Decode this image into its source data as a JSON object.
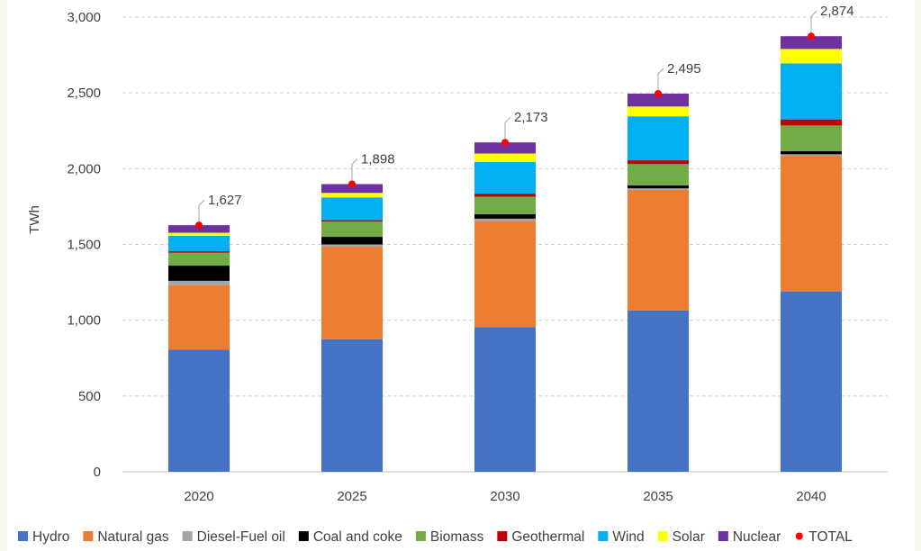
{
  "chart_data": {
    "type": "bar",
    "stacked": true,
    "title": "",
    "xlabel": "",
    "ylabel": "TWh",
    "categories": [
      "2020",
      "2025",
      "2030",
      "2035",
      "2040"
    ],
    "ylim": [
      0,
      3000
    ],
    "yticks": [
      0,
      500,
      1000,
      1500,
      2000,
      2500,
      3000
    ],
    "ytick_labels": [
      "0",
      "500",
      "1,000",
      "1,500",
      "2,000",
      "2,500",
      "3,000"
    ],
    "grid": true,
    "legend_position": "bottom",
    "series": [
      {
        "name": "Hydro",
        "color": "#4472c4",
        "values": [
          805,
          875,
          955,
          1065,
          1190
        ]
      },
      {
        "name": "Natural gas",
        "color": "#ed7d31",
        "values": [
          425,
          610,
          700,
          795,
          895
        ]
      },
      {
        "name": "Diesel-Fuel oil",
        "color": "#a5a5a5",
        "values": [
          30,
          15,
          15,
          10,
          10
        ]
      },
      {
        "name": "Coal and coke",
        "color": "#000000",
        "values": [
          100,
          50,
          30,
          20,
          20
        ]
      },
      {
        "name": "Biomass",
        "color": "#70ad47",
        "values": [
          85,
          100,
          115,
          140,
          170
        ]
      },
      {
        "name": "Geothermal",
        "color": "#c00000",
        "values": [
          10,
          10,
          20,
          25,
          40
        ]
      },
      {
        "name": "Wind",
        "color": "#00b0f0",
        "values": [
          102,
          150,
          210,
          290,
          370
        ]
      },
      {
        "name": "Solar",
        "color": "#ffff00",
        "values": [
          20,
          30,
          55,
          65,
          95
        ]
      },
      {
        "name": "Nuclear",
        "color": "#7030a0",
        "values": [
          50,
          58,
          73,
          85,
          84
        ]
      }
    ],
    "total": {
      "name": "TOTAL",
      "color": "#ff0000",
      "values": [
        1627,
        1898,
        2173,
        2495,
        2874
      ],
      "labels": [
        "1,627",
        "1,898",
        "2,173",
        "2,495",
        "2,874"
      ]
    }
  }
}
